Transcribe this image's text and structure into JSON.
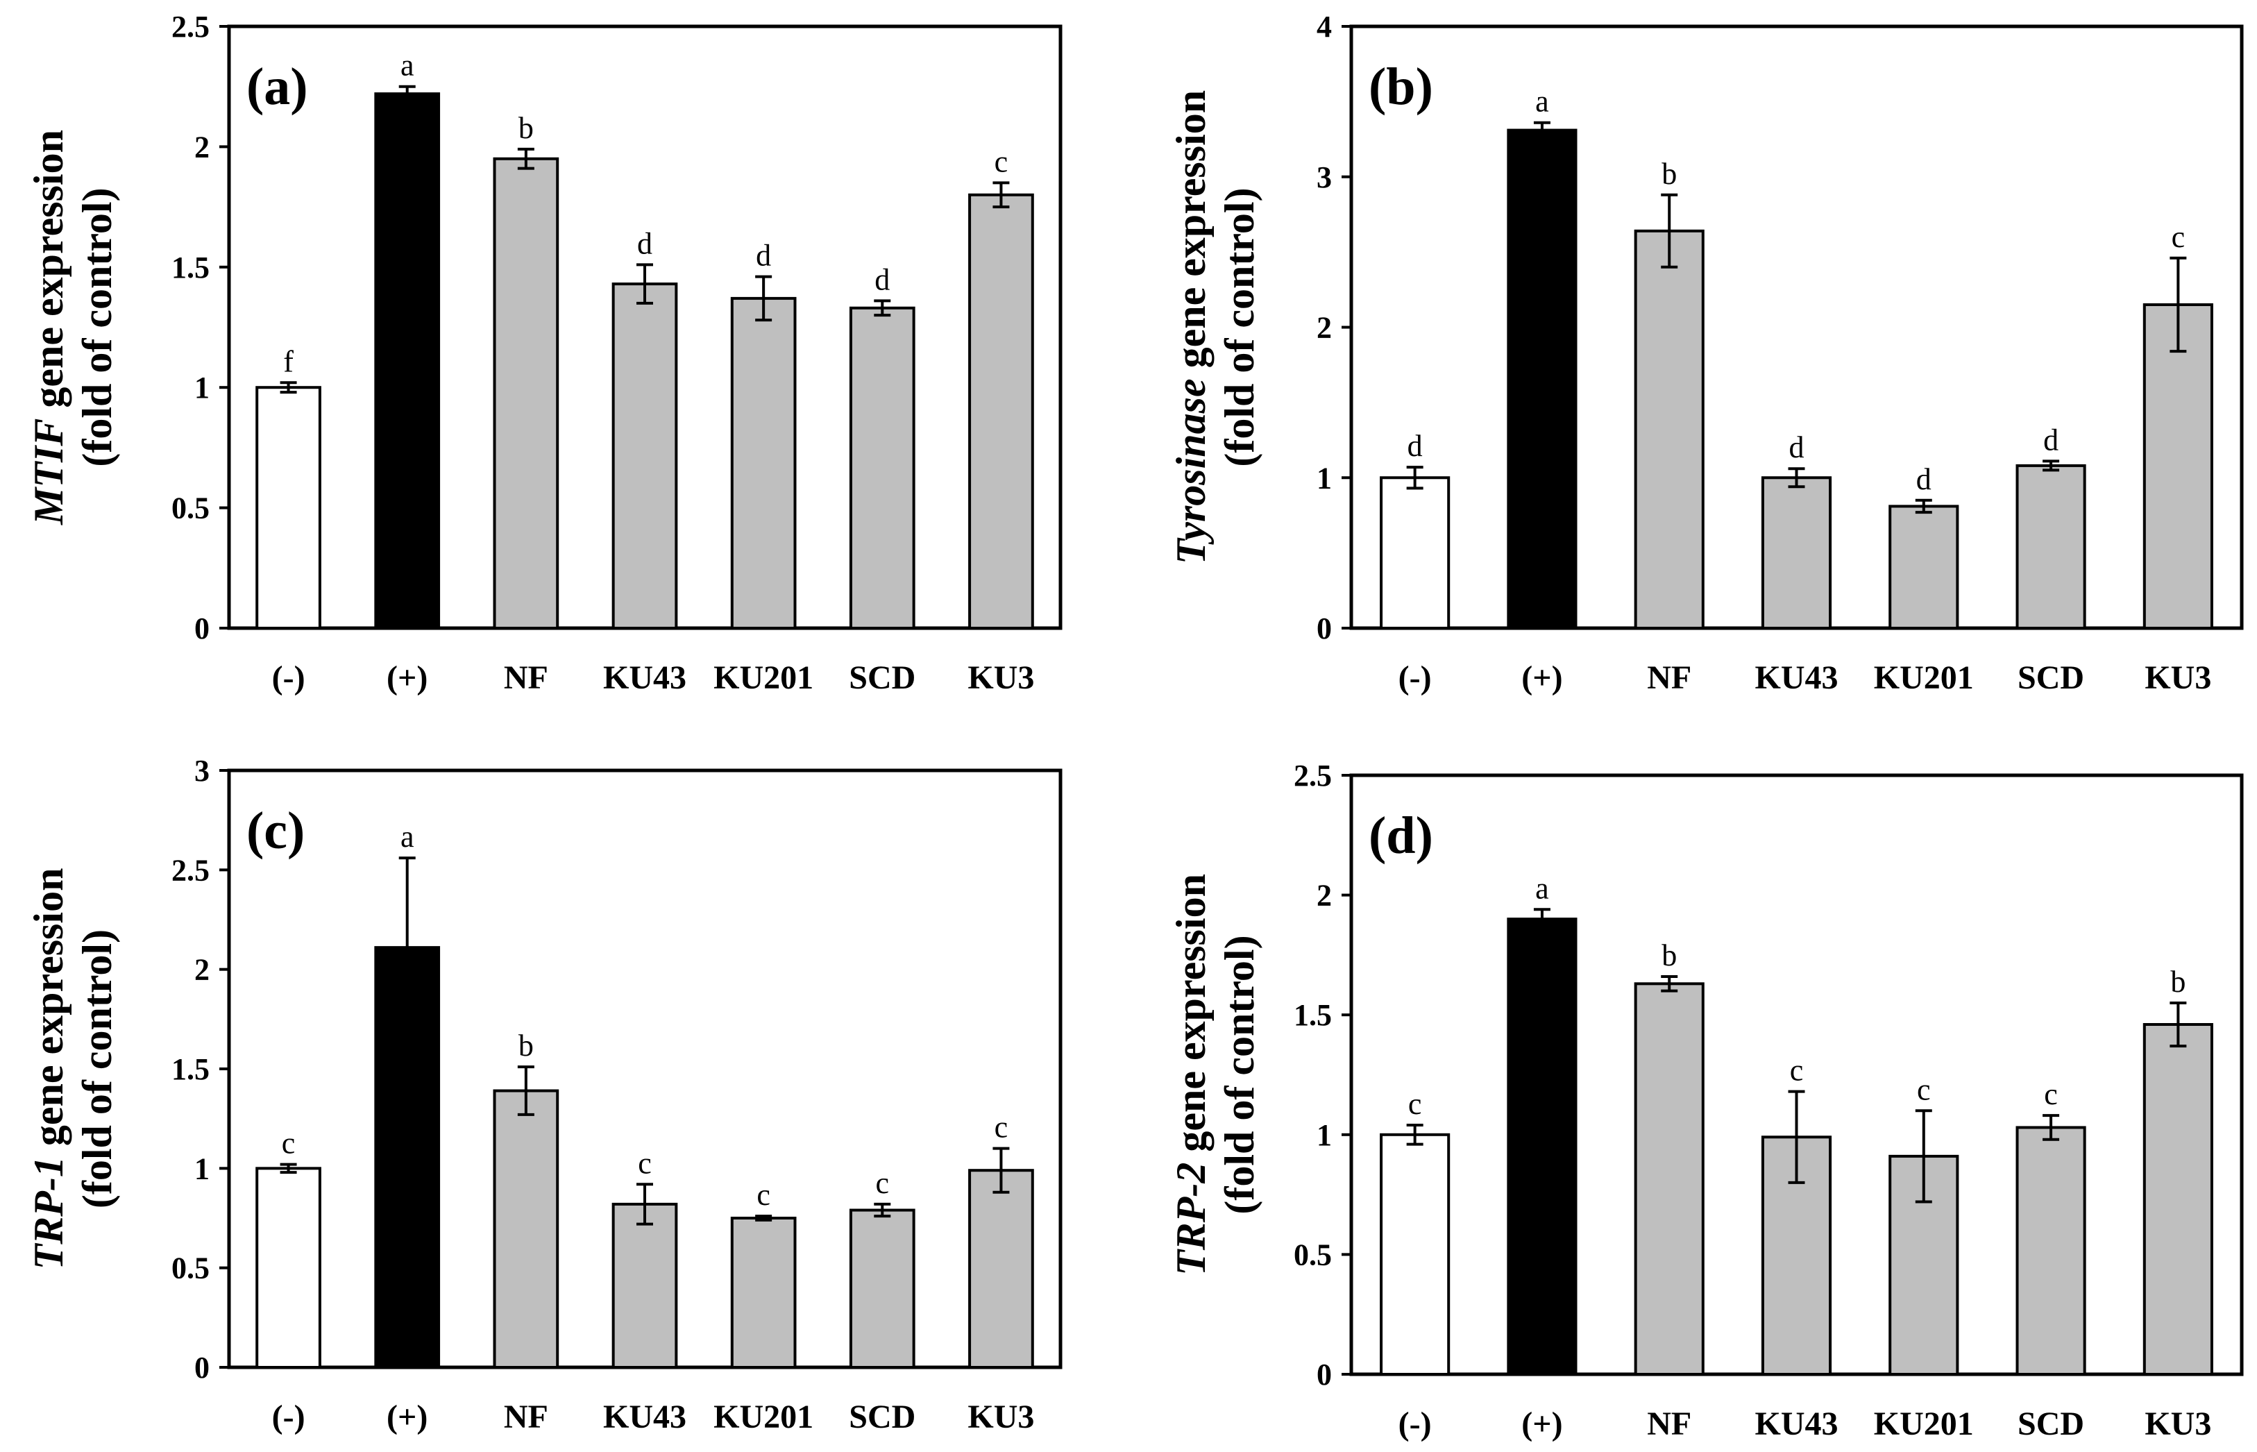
{
  "colors": {
    "negative": "#ffffff",
    "positive": "#000000",
    "sample": "#bfbfbf",
    "stroke": "#000000"
  },
  "chart_data": [
    {
      "type": "bar",
      "panel_label": "(a)",
      "ylabel_gene": "MTIF",
      "ylabel_rest": " gene expression",
      "ylabel_line2": "(fold of control)",
      "categories": [
        "(-)",
        "(+)",
        "NF",
        "KU43",
        "KU201",
        "SCD",
        "KU3"
      ],
      "values": [
        1.0,
        2.22,
        1.95,
        1.43,
        1.37,
        1.33,
        1.8
      ],
      "errors": [
        0.02,
        0.03,
        0.04,
        0.08,
        0.09,
        0.03,
        0.05
      ],
      "letters": [
        "f",
        "a",
        "b",
        "d",
        "d",
        "d",
        "c"
      ],
      "bar_colors": [
        "negative",
        "positive",
        "sample",
        "sample",
        "sample",
        "sample",
        "sample"
      ],
      "ylim": [
        0,
        2.5
      ],
      "yticks": [
        0,
        0.5,
        1,
        1.5,
        2,
        2.5
      ],
      "ytick_labels": [
        "0",
        "0.5",
        "1",
        "1.5",
        "2",
        "2.5"
      ]
    },
    {
      "type": "bar",
      "panel_label": "(b)",
      "ylabel_gene": "Tyrosinase",
      "ylabel_rest": " gene expression",
      "ylabel_line2": "(fold of control)",
      "categories": [
        "(-)",
        "(+)",
        "NF",
        "KU43",
        "KU201",
        "SCD",
        "KU3"
      ],
      "values": [
        1.0,
        3.31,
        2.64,
        1.0,
        0.81,
        1.08,
        2.15
      ],
      "errors": [
        0.07,
        0.05,
        0.24,
        0.06,
        0.04,
        0.03,
        0.31
      ],
      "letters": [
        "d",
        "a",
        "b",
        "d",
        "d",
        "d",
        "c"
      ],
      "bar_colors": [
        "negative",
        "positive",
        "sample",
        "sample",
        "sample",
        "sample",
        "sample"
      ],
      "ylim": [
        0,
        4
      ],
      "yticks": [
        0,
        1,
        2,
        3,
        4
      ],
      "ytick_labels": [
        "0",
        "1",
        "2",
        "3",
        "4"
      ]
    },
    {
      "type": "bar",
      "panel_label": "(c)",
      "ylabel_gene": "TRP-1",
      "ylabel_rest": " gene expression",
      "ylabel_line2": "(fold of control)",
      "categories": [
        "(-)",
        "(+)",
        "NF",
        "KU43",
        "KU201",
        "SCD",
        "KU3"
      ],
      "values": [
        1.0,
        2.11,
        1.39,
        0.82,
        0.75,
        0.79,
        0.99
      ],
      "errors": [
        0.02,
        0.45,
        0.12,
        0.1,
        0.01,
        0.03,
        0.11
      ],
      "letters": [
        "c",
        "a",
        "b",
        "c",
        "c",
        "c",
        "c"
      ],
      "bar_colors": [
        "negative",
        "positive",
        "sample",
        "sample",
        "sample",
        "sample",
        "sample"
      ],
      "ylim": [
        0,
        3
      ],
      "yticks": [
        0,
        0.5,
        1,
        1.5,
        2,
        2.5,
        3
      ],
      "ytick_labels": [
        "0",
        "0.5",
        "1",
        "1.5",
        "2",
        "2.5",
        "3"
      ]
    },
    {
      "type": "bar",
      "panel_label": "(d)",
      "ylabel_gene": "TRP-2",
      "ylabel_rest": " gene expression",
      "ylabel_line2": "(fold of control)",
      "categories": [
        "(-)",
        "(+)",
        "NF",
        "KU43",
        "KU201",
        "SCD",
        "KU3"
      ],
      "values": [
        1.0,
        1.9,
        1.63,
        0.99,
        0.91,
        1.03,
        1.46
      ],
      "errors": [
        0.04,
        0.04,
        0.03,
        0.19,
        0.19,
        0.05,
        0.09
      ],
      "letters": [
        "c",
        "a",
        "b",
        "c",
        "c",
        "c",
        "b"
      ],
      "bar_colors": [
        "negative",
        "positive",
        "sample",
        "sample",
        "sample",
        "sample",
        "sample"
      ],
      "ylim": [
        0,
        2.5
      ],
      "yticks": [
        0,
        0.5,
        1,
        1.5,
        2,
        2.5
      ],
      "ytick_labels": [
        "0",
        "0.5",
        "1",
        "1.5",
        "2",
        "2.5"
      ]
    }
  ]
}
